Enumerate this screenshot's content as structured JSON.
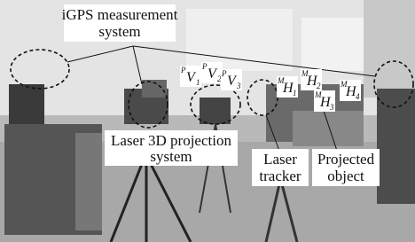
{
  "annotations": [
    {
      "lines": [
        "iGPS measurement",
        "system"
      ]
    },
    {
      "lines": [
        "Laser 3D projection",
        "system"
      ]
    },
    {
      "lines": [
        "Laser",
        "tracker"
      ]
    },
    {
      "lines": [
        "Projected",
        "object"
      ]
    }
  ],
  "symbols": [
    {
      "sup": "P",
      "base": "V",
      "sub": "1"
    },
    {
      "sup": "P",
      "base": "V",
      "sub": "2"
    },
    {
      "sup": "P",
      "base": "V",
      "sub": "3"
    },
    {
      "sup": "M",
      "base": "H",
      "sub": "1"
    },
    {
      "sup": "M",
      "base": "H",
      "sub": "2"
    },
    {
      "sup": "M",
      "base": "H",
      "sub": "3"
    },
    {
      "sup": "M",
      "base": "H",
      "sub": "4"
    }
  ]
}
